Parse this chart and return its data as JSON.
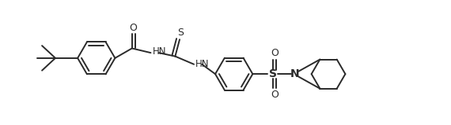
{
  "bg_color": "#ffffff",
  "line_color": "#2a2a2a",
  "line_width": 1.4,
  "figsize": [
    5.7,
    1.59
  ],
  "dpi": 100,
  "xlim": [
    0,
    10.0
  ],
  "ylim": [
    0,
    2.8
  ],
  "ring_r": 0.42,
  "pip_r": 0.38
}
